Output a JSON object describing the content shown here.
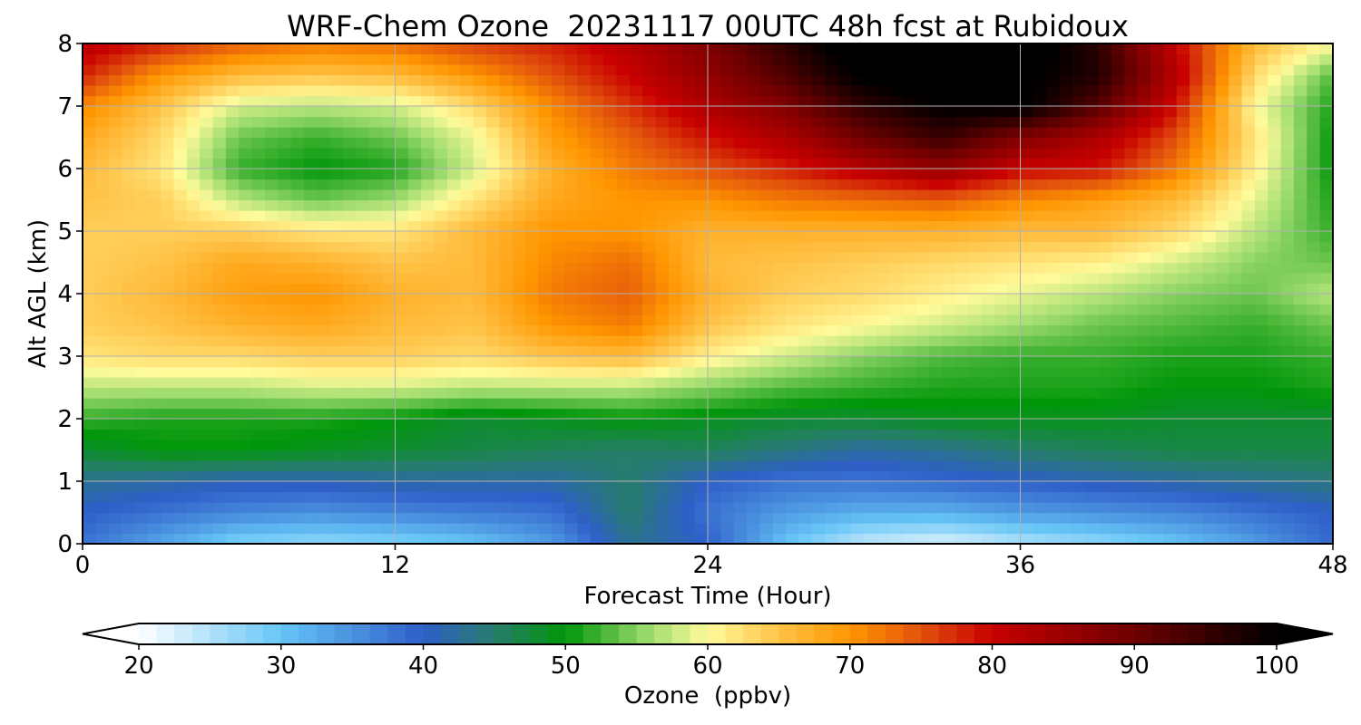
{
  "chart_data": {
    "type": "heatmap",
    "title": "WRF-Chem Ozone  20231117 00UTC 48h fcst at Rubidoux",
    "xlabel": "Forecast Time (Hour)",
    "ylabel": "Alt AGL (km)",
    "xlim": [
      0,
      48
    ],
    "ylim": [
      0,
      8
    ],
    "xticks": [
      0,
      12,
      24,
      36,
      48
    ],
    "yticks": [
      0,
      1,
      2,
      3,
      4,
      5,
      6,
      7,
      8
    ],
    "grid": true,
    "x": [
      0,
      3,
      6,
      9,
      12,
      15,
      18,
      21,
      24,
      27,
      30,
      33,
      36,
      39,
      42,
      45,
      48
    ],
    "y": [
      0,
      0.5,
      1,
      1.5,
      2,
      2.5,
      3,
      3.5,
      4,
      4.5,
      5,
      5.5,
      6,
      6.5,
      7,
      7.5,
      8
    ],
    "values": [
      [
        38,
        33,
        28,
        27,
        28,
        30,
        34,
        43,
        40,
        30,
        24,
        22,
        25,
        27,
        30,
        34,
        39
      ],
      [
        40,
        38,
        36,
        35,
        36,
        37,
        38,
        45,
        38,
        34,
        32,
        32,
        34,
        35,
        36,
        38,
        40
      ],
      [
        43,
        42,
        41,
        41,
        42,
        42,
        42,
        45,
        40,
        38,
        38,
        39,
        40,
        41,
        42,
        43,
        44
      ],
      [
        48,
        50,
        50,
        49,
        48,
        47,
        46,
        45,
        46,
        44,
        42,
        43,
        45,
        46,
        47,
        47,
        47
      ],
      [
        52,
        51,
        51,
        51,
        50,
        48,
        49,
        50,
        49,
        48,
        48,
        49,
        49,
        49,
        48,
        48,
        48
      ],
      [
        57,
        57,
        57,
        58,
        58,
        57,
        57,
        57,
        55,
        53,
        52,
        51,
        51,
        51,
        50,
        50,
        51
      ],
      [
        62,
        63,
        63,
        64,
        64,
        63,
        65,
        66,
        61,
        58,
        55,
        53,
        52,
        52,
        51,
        51,
        52
      ],
      [
        64,
        65,
        67,
        68,
        66,
        65,
        70,
        72,
        65,
        62,
        60,
        58,
        56,
        54,
        53,
        52,
        54
      ],
      [
        64,
        66,
        69,
        70,
        67,
        66,
        72,
        74,
        67,
        64,
        63,
        61,
        59,
        57,
        55,
        54,
        57
      ],
      [
        64,
        65,
        68,
        67,
        65,
        66,
        71,
        73,
        66,
        65,
        64,
        63,
        62,
        61,
        58,
        55,
        54
      ],
      [
        64,
        64,
        64,
        62,
        62,
        66,
        70,
        70,
        67,
        67,
        67,
        67,
        66,
        66,
        63,
        57,
        52
      ],
      [
        65,
        64,
        57,
        54,
        56,
        62,
        68,
        70,
        70,
        72,
        73,
        74,
        71,
        69,
        66,
        59,
        51
      ],
      [
        66,
        62,
        52,
        50,
        51,
        58,
        67,
        72,
        75,
        78,
        82,
        86,
        80,
        79,
        72,
        61,
        50
      ],
      [
        68,
        63,
        54,
        52,
        54,
        59,
        69,
        74,
        79,
        83,
        90,
        95,
        88,
        83,
        75,
        62,
        50
      ],
      [
        71,
        65,
        58,
        57,
        58,
        63,
        71,
        77,
        83,
        88,
        96,
        100,
        101,
        92,
        79,
        60,
        51
      ],
      [
        78,
        70,
        66,
        65,
        66,
        70,
        75,
        80,
        86,
        93,
        101,
        103,
        101,
        97,
        82,
        63,
        53
      ],
      [
        82,
        78,
        74,
        72,
        73,
        76,
        78,
        82,
        88,
        96,
        104,
        106,
        103,
        96,
        80,
        66,
        60
      ]
    ],
    "colorbar": {
      "label": "Ozone  (ppbv)",
      "min": 20,
      "max": 100,
      "ticks": [
        20,
        30,
        40,
        50,
        60,
        70,
        80,
        90,
        100
      ],
      "extend": "both",
      "colors": [
        {
          "v": 20,
          "c": "#ffffff"
        },
        {
          "v": 30,
          "c": "#66c5f6"
        },
        {
          "v": 40,
          "c": "#2f5fc9"
        },
        {
          "v": 45,
          "c": "#277d6c"
        },
        {
          "v": 50,
          "c": "#00960a"
        },
        {
          "v": 56,
          "c": "#a2dd71"
        },
        {
          "v": 60,
          "c": "#fffb9b"
        },
        {
          "v": 65,
          "c": "#ffc348"
        },
        {
          "v": 70,
          "c": "#ff9600"
        },
        {
          "v": 75,
          "c": "#e2520c"
        },
        {
          "v": 80,
          "c": "#c80000"
        },
        {
          "v": 90,
          "c": "#6e0000"
        },
        {
          "v": 100,
          "c": "#000000"
        }
      ]
    }
  }
}
